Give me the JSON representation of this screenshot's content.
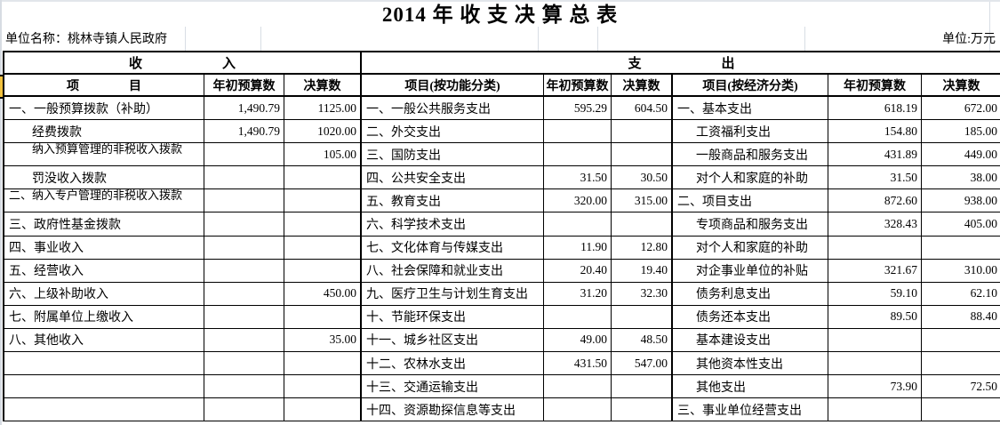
{
  "title": "2014 年 收 支 决 算 总 表",
  "unit_name": "单位名称：桃林寺镇人民政府",
  "unit": "单位:万元",
  "colors": {
    "row_marker": "#f2c23e",
    "sheet_edge": "#d7dce3",
    "gridline": "#000000"
  },
  "headers": {
    "income_band": "收　　　　　　入",
    "expense_band": "支　　　　　　出",
    "income_item": "项　　　　目",
    "initial_budget": "年初预算数",
    "final_accounts": "决算数",
    "function_item": "项目(按功能分类)",
    "economic_item": "项目(按经济分类)"
  },
  "income_rows": [
    {
      "item": "一、一般预算拨款（补助）",
      "budget": "1,490.79",
      "final": "1125.00",
      "indent": 0
    },
    {
      "item": "经费拨款",
      "budget": "1,490.79",
      "final": "1020.00",
      "indent": 1
    },
    {
      "item": "纳入预算管理的非税收入拨款",
      "budget": "",
      "final": "105.00",
      "indent": 1,
      "wrap": true
    },
    {
      "item": "罚没收入拨款",
      "budget": "",
      "final": "",
      "indent": 1
    },
    {
      "item": "二、纳入专户管理的非税收入拨款",
      "budget": "",
      "final": "",
      "indent": 0,
      "wrap": true
    },
    {
      "item": "三、政府性基金拨款",
      "budget": "",
      "final": "",
      "indent": 0
    },
    {
      "item": "四、事业收入",
      "budget": "",
      "final": "",
      "indent": 0
    },
    {
      "item": "五、经营收入",
      "budget": "",
      "final": "",
      "indent": 0
    },
    {
      "item": "六、上级补助收入",
      "budget": "",
      "final": "450.00",
      "indent": 0
    },
    {
      "item": "七、附属单位上缴收入",
      "budget": "",
      "final": "",
      "indent": 0
    },
    {
      "item": "八、其他收入",
      "budget": "",
      "final": "35.00",
      "indent": 0
    },
    {
      "item": "",
      "budget": "",
      "final": "",
      "indent": 0
    },
    {
      "item": "",
      "budget": "",
      "final": "",
      "indent": 0
    },
    {
      "item": "",
      "budget": "",
      "final": "",
      "indent": 0
    }
  ],
  "function_rows": [
    {
      "item": "一、一般公共服务支出",
      "budget": "595.29",
      "final": "604.50"
    },
    {
      "item": "二、外交支出",
      "budget": "",
      "final": ""
    },
    {
      "item": "三、国防支出",
      "budget": "",
      "final": ""
    },
    {
      "item": "四、公共安全支出",
      "budget": "31.50",
      "final": "30.50"
    },
    {
      "item": "五、教育支出",
      "budget": "320.00",
      "final": "315.00"
    },
    {
      "item": "六、科学技术支出",
      "budget": "",
      "final": ""
    },
    {
      "item": "七、文化体育与传媒支出",
      "budget": "11.90",
      "final": "12.80"
    },
    {
      "item": "八、社会保障和就业支出",
      "budget": "20.40",
      "final": "19.40"
    },
    {
      "item": "九、医疗卫生与计划生育支出",
      "budget": "31.20",
      "final": "32.30"
    },
    {
      "item": "十、节能环保支出",
      "budget": "",
      "final": ""
    },
    {
      "item": "十一、城乡社区支出",
      "budget": "49.00",
      "final": "48.50"
    },
    {
      "item": "十二、农林水支出",
      "budget": "431.50",
      "final": "547.00"
    },
    {
      "item": "十三、交通运输支出",
      "budget": "",
      "final": ""
    },
    {
      "item": "十四、资源勘探信息等支出",
      "budget": "",
      "final": ""
    }
  ],
  "economic_rows": [
    {
      "item": "一、基本支出",
      "budget": "618.19",
      "final": "672.00",
      "indent": 0
    },
    {
      "item": "工资福利支出",
      "budget": "154.80",
      "final": "185.00",
      "indent": 1
    },
    {
      "item": "一般商品和服务支出",
      "budget": "431.89",
      "final": "449.00",
      "indent": 1
    },
    {
      "item": "对个人和家庭的补助",
      "budget": "31.50",
      "final": "38.00",
      "indent": 1
    },
    {
      "item": "二、项目支出",
      "budget": "872.60",
      "final": "938.00",
      "indent": 0
    },
    {
      "item": "专项商品和服务支出",
      "budget": "328.43",
      "final": "405.00",
      "indent": 1
    },
    {
      "item": "对个人和家庭的补助",
      "budget": "",
      "final": "",
      "indent": 1
    },
    {
      "item": "对企事业单位的补贴",
      "budget": "321.67",
      "final": "310.00",
      "indent": 1
    },
    {
      "item": "债务利息支出",
      "budget": "59.10",
      "final": "62.10",
      "indent": 1
    },
    {
      "item": "债务还本支出",
      "budget": "89.50",
      "final": "88.40",
      "indent": 1
    },
    {
      "item": "基本建设支出",
      "budget": "",
      "final": "",
      "indent": 1
    },
    {
      "item": "其他资本性支出",
      "budget": "",
      "final": "",
      "indent": 1
    },
    {
      "item": "其他支出",
      "budget": "73.90",
      "final": "72.50",
      "indent": 1
    },
    {
      "item": "三、事业单位经营支出",
      "budget": "",
      "final": "",
      "indent": 0
    }
  ]
}
